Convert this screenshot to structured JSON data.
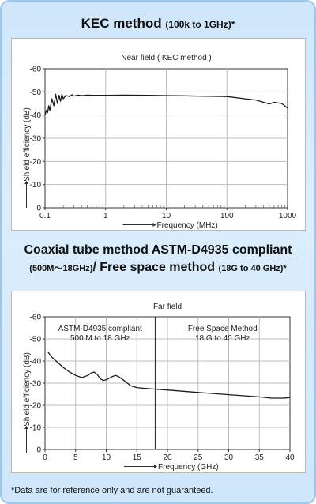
{
  "header": {
    "title1_main": "KEC method",
    "title1_sub": "(100k to 1GHz)*",
    "title2": "Coaxial tube method ASTM-D4935 compliant",
    "title3_range": "(500M～18GHz)",
    "title3_main": "/ Free space method",
    "title3_sub": "(18G to 40 GHz)*"
  },
  "footnote": "*Data are for reference only and are not guaranteed.",
  "colors": {
    "background": "#cfe6fb",
    "border": "#9cc8ef",
    "line": "#1a1a1a",
    "grid": "#bdbdbd"
  },
  "chart_data": [
    {
      "type": "line",
      "title": "Near field ( KEC method )",
      "xlabel": "Frequency (MHz)",
      "ylabel": "Shield efficiency (dB)",
      "x_scale": "log",
      "xlim": [
        0.1,
        1000
      ],
      "ylim": [
        0,
        -60
      ],
      "x_ticks": [
        0.1,
        1,
        10,
        100,
        1000
      ],
      "x_tick_labels": [
        "0.1",
        "1",
        "10",
        "100",
        "1000"
      ],
      "y_ticks": [
        0,
        -10,
        -20,
        -30,
        -40,
        -50,
        -60
      ],
      "y_tick_labels": [
        "0",
        "-10",
        "-20",
        "-30",
        "-40",
        "-50",
        "-60"
      ],
      "series": [
        {
          "x": [
            0.1,
            0.105,
            0.11,
            0.115,
            0.12,
            0.13,
            0.14,
            0.15,
            0.16,
            0.17,
            0.18,
            0.19,
            0.2,
            0.22,
            0.25,
            0.28,
            0.3,
            0.35,
            0.4,
            0.5,
            0.6,
            0.8,
            1,
            2,
            5,
            10,
            20,
            50,
            100,
            200,
            300,
            500,
            600,
            800,
            1000
          ],
          "y": [
            40,
            42,
            41,
            44,
            42,
            47,
            44,
            49,
            45,
            48.5,
            46,
            49,
            47,
            48.5,
            48,
            48.8,
            48.2,
            48.6,
            48.4,
            48.6,
            48.5,
            48.5,
            48.5,
            48.6,
            48.5,
            48.4,
            48.3,
            48.1,
            48,
            47,
            46.5,
            44.8,
            45.5,
            45,
            43
          ]
        }
      ]
    },
    {
      "type": "line",
      "title": "Far field",
      "xlabel": "Frequency (GHz)",
      "ylabel": "Shield efficiency (dB)",
      "xlim": [
        0,
        40
      ],
      "ylim": [
        0,
        -60
      ],
      "x_ticks": [
        0,
        5,
        10,
        15,
        20,
        25,
        30,
        35,
        40
      ],
      "x_tick_labels": [
        "0",
        "5",
        "10",
        "15",
        "20",
        "25",
        "30",
        "35",
        "40"
      ],
      "y_ticks": [
        0,
        -10,
        -20,
        -30,
        -40,
        -50,
        -60
      ],
      "y_tick_labels": [
        "0",
        "-10",
        "-20",
        "-30",
        "-40",
        "-50",
        "-60"
      ],
      "divider_x": 18,
      "annotations": [
        {
          "title": "ASTM-D4935 compliant",
          "range": "500 M to 18 GHz"
        },
        {
          "title": "Free Space Method",
          "range": "18 G to 40 GHz"
        }
      ],
      "series": [
        {
          "x": [
            0.5,
            1,
            2,
            3,
            4,
            5,
            6,
            7,
            7.5,
            8,
            8.5,
            9,
            9.5,
            10,
            11,
            11.5,
            12,
            13,
            14,
            15,
            16,
            17,
            18,
            20,
            25,
            30,
            35,
            37,
            39,
            40
          ],
          "y": [
            44,
            42,
            39.5,
            37,
            35,
            33.5,
            32.5,
            33.5,
            34.5,
            35,
            34,
            32,
            31.2,
            31.5,
            33,
            33.5,
            33,
            31,
            28.8,
            28,
            27.7,
            27.5,
            27.3,
            26.9,
            25.8,
            24.8,
            23.8,
            23.2,
            23.2,
            23.5
          ]
        }
      ]
    }
  ]
}
